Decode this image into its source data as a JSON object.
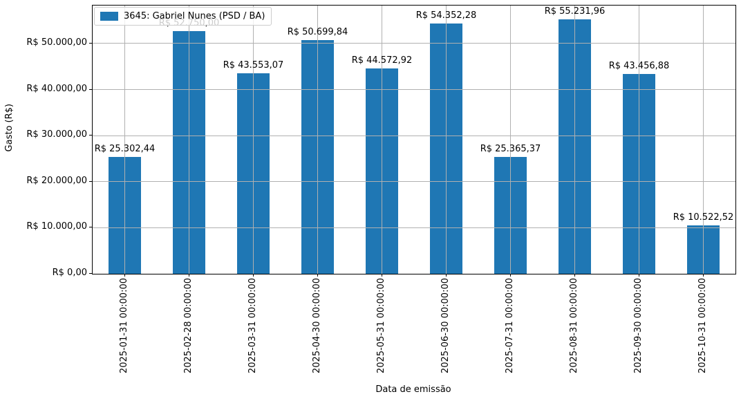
{
  "chart_data": {
    "type": "bar",
    "title": "",
    "xlabel": "Data de emissão",
    "ylabel": "Gasto (R$)",
    "legend": {
      "label": "3645: Gabriel Nunes (PSD / BA)",
      "position": "upper-left",
      "swatch_color": "#1f77b4"
    },
    "bar_color": "#1f77b4",
    "grid": true,
    "grid_color": "#b0b0b0",
    "ylim": [
      0,
      58250
    ],
    "yticks": {
      "values": [
        0,
        10000,
        20000,
        30000,
        40000,
        50000
      ],
      "labels": [
        "R$ 0,00",
        "R$ 10.000,00",
        "R$ 20.000,00",
        "R$ 30.000,00",
        "R$ 40.000,00",
        "R$ 50.000,00"
      ]
    },
    "categories": [
      "2025-01-31 00:00:00",
      "2025-02-28 00:00:00",
      "2025-03-31 00:00:00",
      "2025-04-30 00:00:00",
      "2025-05-31 00:00:00",
      "2025-06-30 00:00:00",
      "2025-07-31 00:00:00",
      "2025-08-31 00:00:00",
      "2025-09-30 00:00:00",
      "2025-10-31 00:00:00"
    ],
    "values": [
      25302.44,
      52750.0,
      43553.07,
      50699.84,
      44572.92,
      54352.28,
      25365.37,
      55231.96,
      43456.88,
      10522.52
    ],
    "bar_labels": [
      "R$ 25.302,44",
      "R$ 52.750,00",
      "R$ 43.553,07",
      "R$ 50.699,84",
      "R$ 44.572,92",
      "R$ 54.352,28",
      "R$ 25.365,37",
      "R$ 55.231,96",
      "R$ 43.456,88",
      "R$ 10.522,52"
    ],
    "notes": "bar label for 2025-02-28 is occluded by the legend box"
  }
}
